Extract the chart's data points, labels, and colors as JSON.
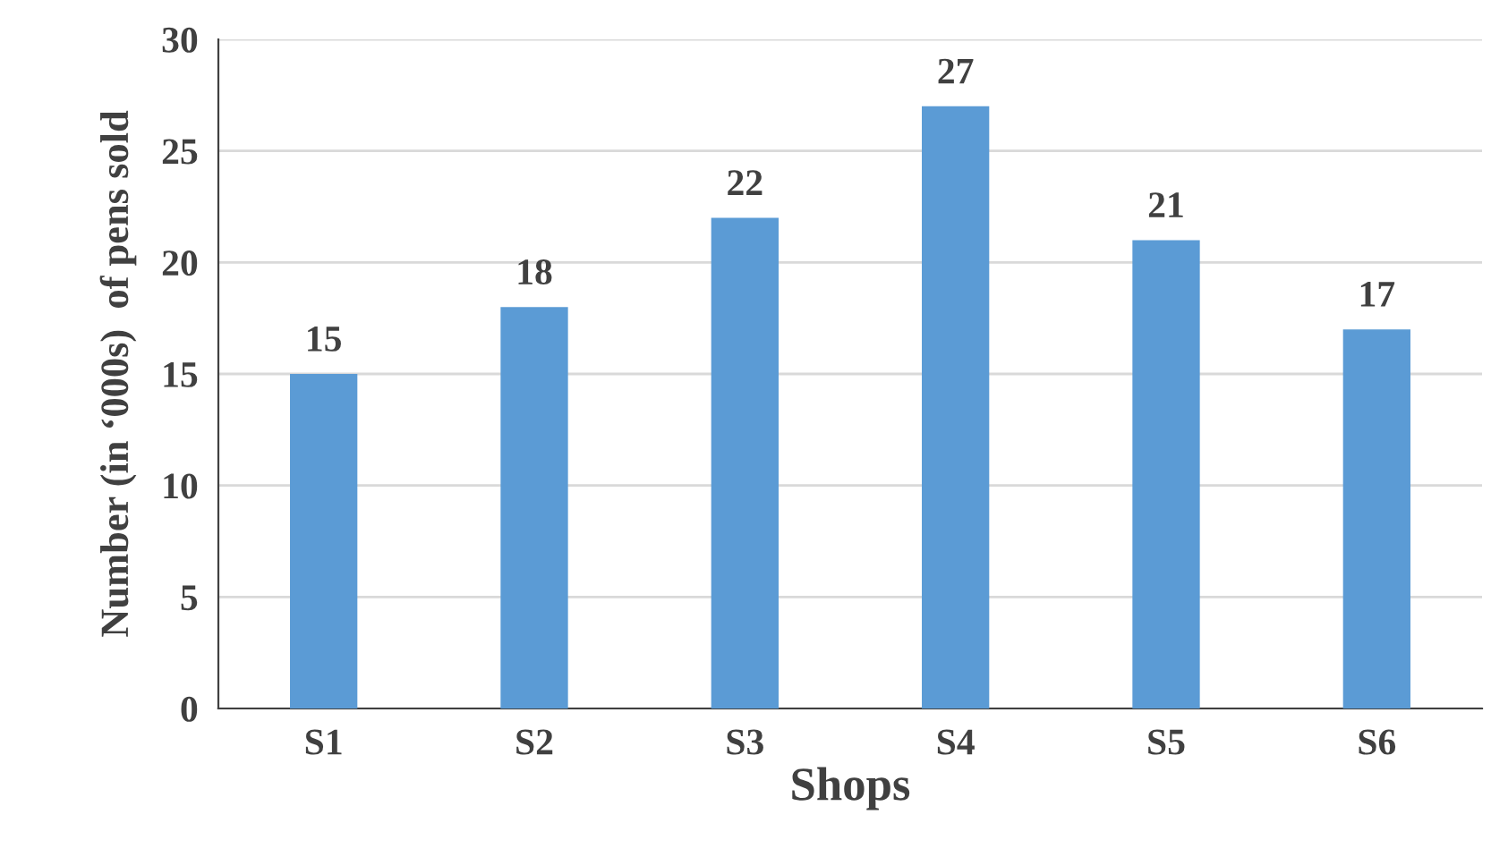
{
  "chart_data": {
    "type": "bar",
    "xlabel": "Shops",
    "ylabel": "Number (in ‘000s)  of pens sold",
    "categories": [
      "S1",
      "S2",
      "S3",
      "S4",
      "S5",
      "S6"
    ],
    "values": [
      15,
      18,
      22,
      27,
      21,
      17
    ],
    "color": "#5b9bd5",
    "ylim": [
      0,
      30
    ],
    "yticks": [
      0,
      5,
      10,
      15,
      20,
      25,
      30
    ],
    "grid": "y",
    "data_labels": true
  }
}
